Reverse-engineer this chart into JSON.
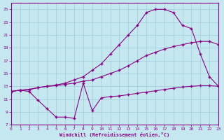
{
  "background_color": "#c5e8f0",
  "grid_color": "#9fccd8",
  "line_color": "#880088",
  "xlabel": "Windchill (Refroidissement éolien,°C)",
  "xlim": [
    0,
    23
  ],
  "ylim": [
    7,
    26
  ],
  "yticks": [
    7,
    9,
    11,
    13,
    15,
    17,
    19,
    21,
    23,
    25
  ],
  "xticks": [
    0,
    1,
    2,
    3,
    4,
    5,
    6,
    7,
    8,
    9,
    10,
    11,
    12,
    13,
    14,
    15,
    16,
    17,
    18,
    19,
    20,
    21,
    22,
    23
  ],
  "line1_x": [
    0,
    1,
    2,
    3,
    4,
    5,
    6,
    7,
    8,
    9,
    10,
    11,
    12,
    13,
    14,
    15,
    16,
    17,
    18,
    19,
    20,
    21,
    22,
    23
  ],
  "line1_y": [
    12.2,
    12.4,
    12.2,
    10.8,
    9.5,
    8.2,
    8.2,
    8.0,
    13.5,
    9.2,
    11.2,
    11.4,
    11.5,
    11.7,
    11.9,
    12.1,
    12.3,
    12.5,
    12.7,
    12.9,
    13.0,
    13.1,
    13.1,
    13.0
  ],
  "line2_x": [
    0,
    1,
    2,
    3,
    4,
    5,
    6,
    7,
    8,
    9,
    10,
    11,
    12,
    13,
    14,
    15,
    16,
    17,
    18,
    19,
    20,
    21,
    22,
    23
  ],
  "line2_y": [
    12.2,
    12.4,
    12.5,
    12.8,
    13.0,
    13.1,
    13.3,
    13.5,
    13.8,
    14.0,
    14.5,
    15.0,
    15.5,
    16.2,
    17.0,
    17.8,
    18.3,
    18.8,
    19.2,
    19.5,
    19.8,
    20.0,
    20.0,
    19.5
  ],
  "line3_x": [
    0,
    1,
    2,
    3,
    4,
    5,
    6,
    7,
    8,
    9,
    10,
    11,
    12,
    13,
    14,
    15,
    16,
    17,
    18,
    19,
    20,
    21,
    22,
    23
  ],
  "line3_y": [
    12.2,
    12.4,
    12.5,
    12.8,
    13.0,
    13.2,
    13.5,
    14.0,
    14.5,
    15.5,
    16.5,
    18.0,
    19.5,
    21.0,
    22.5,
    24.5,
    25.0,
    25.0,
    24.5,
    22.5,
    22.0,
    18.0,
    14.5,
    13.0
  ]
}
